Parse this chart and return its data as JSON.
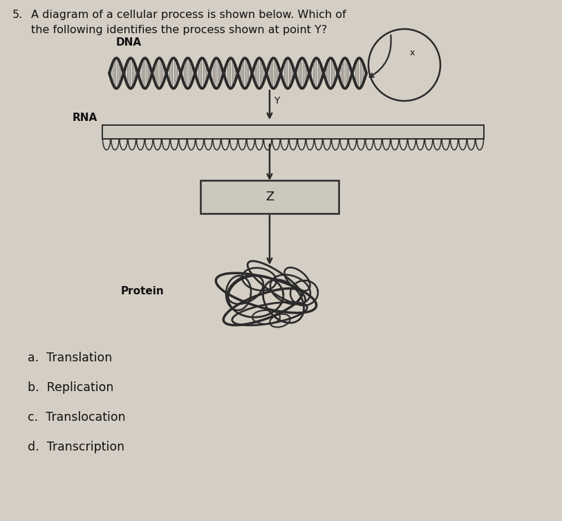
{
  "title_number": "5.",
  "question_line1": "A diagram of a cellular process is shown below. Which of",
  "question_line2": "the following identifies the process shown at point Y?",
  "labels": {
    "DNA": "DNA",
    "RNA": "RNA",
    "Protein": "Protein",
    "X": "x",
    "Y": "Y",
    "Z": "Z"
  },
  "answers": [
    "a.  Translation",
    "b.  Replication",
    "c.  Translocation",
    "d.  Transcription"
  ],
  "bg_color": "#d4cec4",
  "text_color": "#111111",
  "diagram_color": "#2a2a2a",
  "font_size_question": 11.5,
  "font_size_label": 11,
  "font_size_answer": 12.5
}
